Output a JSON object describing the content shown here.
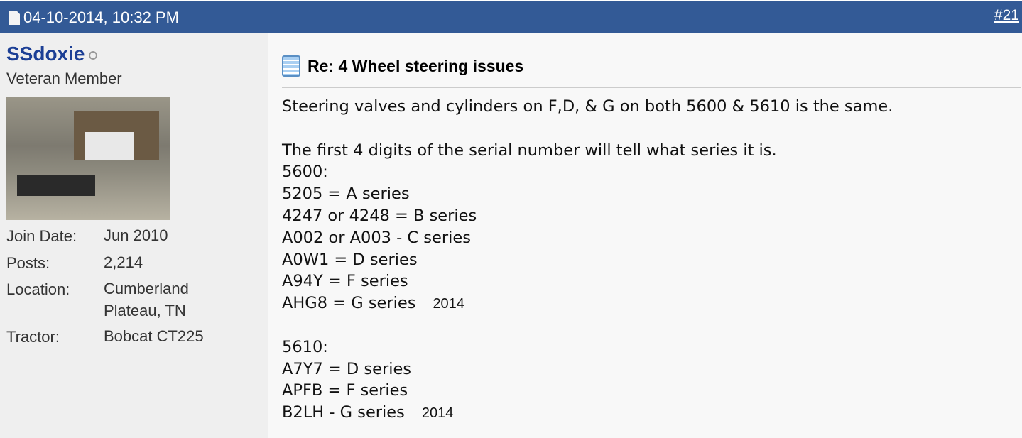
{
  "post_header": {
    "date": "04-10-2014, 10:32 PM",
    "post_number": "#21"
  },
  "user": {
    "name": "SSdoxie",
    "status": "offline",
    "title": "Veteran Member",
    "info": [
      {
        "label": "Join Date:",
        "value": "Jun 2010"
      },
      {
        "label": "Posts:",
        "value": "2,214"
      },
      {
        "label": "Location:",
        "value": "Cumberland",
        "value2": "Plateau, TN"
      },
      {
        "label": "Tractor:",
        "value": "Bobcat CT225"
      }
    ]
  },
  "post": {
    "title": "Re: 4 Wheel steering issues",
    "lines": [
      {
        "text": "Steering valves and cylinders on F,D, & G on both 5600 & 5610 is the same."
      },
      {
        "text": ""
      },
      {
        "text": "The first 4 digits of the serial number will tell what series it is."
      },
      {
        "text": "5600:"
      },
      {
        "text": "5205 = A series"
      },
      {
        "text": "4247 or 4248 = B series"
      },
      {
        "text": "A002 or A003 - C series"
      },
      {
        "text": "A0W1 = D series"
      },
      {
        "text": "A94Y = F series"
      },
      {
        "text": "AHG8 = G series",
        "note": "2014"
      },
      {
        "text": ""
      },
      {
        "text": "5610:"
      },
      {
        "text": "A7Y7 = D series"
      },
      {
        "text": "APFB = F series"
      },
      {
        "text": "B2LH - G series",
        "note": "2014"
      }
    ]
  },
  "colors": {
    "header_bg": "#335a96",
    "username": "#1c3f95"
  }
}
